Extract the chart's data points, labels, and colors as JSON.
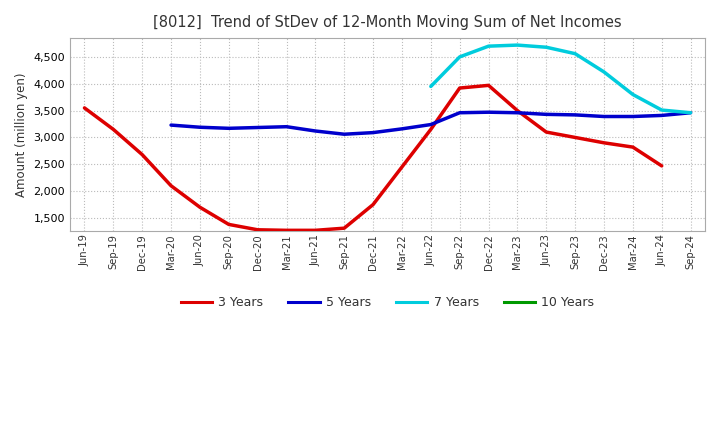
{
  "title": "[8012]  Trend of StDev of 12-Month Moving Sum of Net Incomes",
  "ylabel": "Amount (million yen)",
  "background_color": "#ffffff",
  "plot_background": "#ffffff",
  "grid_color": "#bbbbbb",
  "ylim": [
    1250,
    4850
  ],
  "yticks": [
    1500,
    2000,
    2500,
    3000,
    3500,
    4000,
    4500
  ],
  "x_labels": [
    "Jun-19",
    "Sep-19",
    "Dec-19",
    "Mar-20",
    "Jun-20",
    "Sep-20",
    "Dec-20",
    "Mar-21",
    "Jun-21",
    "Sep-21",
    "Dec-21",
    "Mar-22",
    "Jun-22",
    "Sep-22",
    "Dec-22",
    "Mar-23",
    "Jun-23",
    "Sep-23",
    "Dec-23",
    "Mar-24",
    "Jun-24",
    "Sep-24"
  ],
  "series": {
    "3 Years": {
      "color": "#dd0000",
      "linewidth": 2.5,
      "values": [
        3550,
        3150,
        2680,
        2100,
        1700,
        1380,
        1280,
        1270,
        1270,
        1310,
        1750,
        2450,
        3150,
        3920,
        3970,
        3500,
        3100,
        3000,
        2900,
        2820,
        2470,
        null
      ]
    },
    "5 Years": {
      "color": "#0000cc",
      "linewidth": 2.5,
      "values": [
        null,
        null,
        null,
        3230,
        3190,
        3170,
        3185,
        3200,
        3120,
        3060,
        3090,
        3160,
        3240,
        3460,
        3470,
        3460,
        3430,
        3420,
        3390,
        3390,
        3410,
        3460
      ]
    },
    "7 Years": {
      "color": "#00ccdd",
      "linewidth": 2.5,
      "values": [
        null,
        null,
        null,
        null,
        null,
        null,
        null,
        null,
        null,
        null,
        null,
        null,
        3950,
        4500,
        4700,
        4720,
        4680,
        4560,
        4220,
        3800,
        3510,
        3460
      ]
    },
    "10 Years": {
      "color": "#009900",
      "linewidth": 2.5,
      "values": [
        null,
        null,
        null,
        null,
        null,
        null,
        null,
        null,
        null,
        null,
        null,
        null,
        null,
        null,
        null,
        null,
        null,
        null,
        null,
        null,
        null,
        null
      ]
    }
  },
  "legend_labels": [
    "3 Years",
    "5 Years",
    "7 Years",
    "10 Years"
  ],
  "legend_colors": [
    "#dd0000",
    "#0000cc",
    "#00ccdd",
    "#009900"
  ]
}
